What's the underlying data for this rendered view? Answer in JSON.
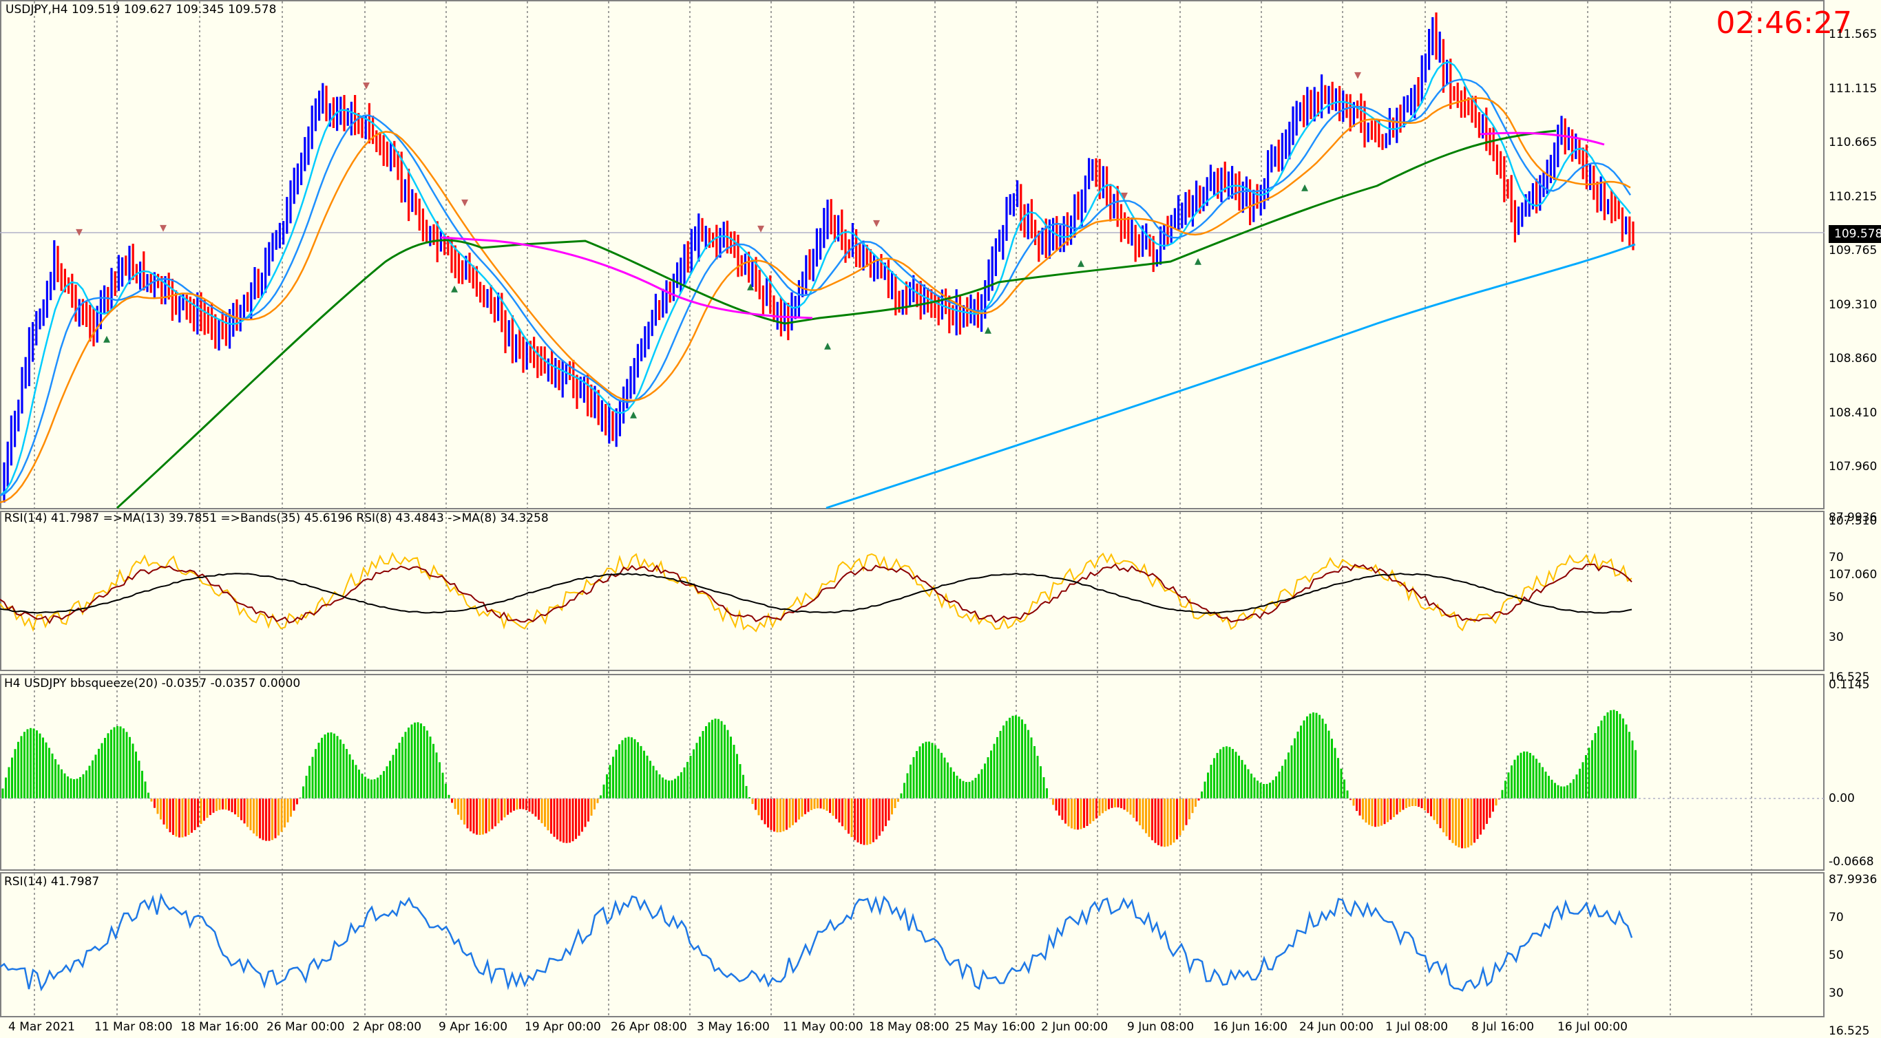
{
  "header": {
    "symbol_info": "USDJPY,H4  109.519 109.627 109.345 109.578",
    "timer": "02:46:27"
  },
  "price_axis": {
    "labels": [
      "111.565",
      "111.115",
      "110.665",
      "110.215",
      "109.765",
      "109.310",
      "108.860",
      "108.410",
      "107.960",
      "107.510",
      "107.060"
    ],
    "current_price": "109.578"
  },
  "rsi_panel": {
    "title": "RSI(14) 41.7987  =>MA(13) 39.7851  =>Bands(35) 45.6196  RSI(8) 43.4843  ->MA(8) 34.3258",
    "axis_labels": [
      "87.9936",
      "70",
      "50",
      "30",
      "16.525"
    ]
  },
  "squeeze_panel": {
    "title": "H4 USDJPY bbsqueeze(20) -0.0357 -0.0357 0.0000",
    "axis_labels": [
      "0.1145",
      "0.00",
      "-0.0668"
    ]
  },
  "rsi2_panel": {
    "title": "RSI(14) 41.7987",
    "axis_labels": [
      "87.9936",
      "70",
      "50",
      "30",
      "16.525"
    ]
  },
  "date_axis": {
    "labels": [
      "4 Mar 2021",
      "11 Mar 08:00",
      "18 Mar 16:00",
      "26 Mar 00:00",
      "2 Apr 08:00",
      "9 Apr 16:00",
      "19 Apr 00:00",
      "26 Apr 08:00",
      "3 May 16:00",
      "11 May 00:00",
      "18 May 08:00",
      "25 May 16:00",
      "2 Jun 00:00",
      "9 Jun 08:00",
      "16 Jun 16:00",
      "24 Jun 00:00",
      "1 Jul 08:00",
      "8 Jul 16:00",
      "16 Jul 00:00"
    ]
  },
  "colors": {
    "background": "#fffff0",
    "bull_bar": "#0000ff",
    "bear_bar": "#ff0000",
    "ema_fast": "#00ccff",
    "ema_mid": "#1e90ff",
    "ema_slow": "#ff8c00",
    "ma_green": "#008000",
    "ma_magenta": "#ff00ff",
    "ma_long": "#00aaff",
    "rsi_yellow": "#ffc000",
    "rsi_brown": "#8b0000",
    "rsi_black": "#000000",
    "squeeze_green": "#00cc00",
    "squeeze_red": "#ff0000",
    "squeeze_orange": "#ffa500",
    "rsi2_line": "#1e78e6",
    "timer": "#ff0000"
  }
}
